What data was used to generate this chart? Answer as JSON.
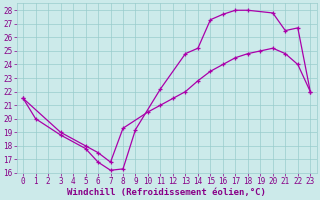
{
  "xlabel": "Windchill (Refroidissement éolien,°C)",
  "xlim": [
    -0.5,
    23.5
  ],
  "ylim": [
    16,
    28.5
  ],
  "xticks": [
    0,
    1,
    2,
    3,
    4,
    5,
    6,
    7,
    8,
    9,
    10,
    11,
    12,
    13,
    14,
    15,
    16,
    17,
    18,
    19,
    20,
    21,
    22,
    23
  ],
  "yticks": [
    16,
    17,
    18,
    19,
    20,
    21,
    22,
    23,
    24,
    25,
    26,
    27,
    28
  ],
  "bg_color": "#cceaea",
  "grid_color": "#99cccc",
  "line_color": "#aa00aa",
  "curve1_x": [
    0,
    1,
    3,
    5,
    6,
    7,
    8,
    9,
    11,
    13,
    14,
    15,
    16,
    17,
    18,
    20,
    21,
    22,
    23
  ],
  "curve1_y": [
    21.5,
    20.0,
    18.8,
    17.8,
    16.8,
    16.2,
    16.3,
    19.2,
    22.2,
    24.8,
    25.2,
    27.3,
    27.7,
    28.0,
    28.0,
    27.8,
    26.5,
    26.7,
    22.0
  ],
  "curve2_x": [
    0,
    3,
    5,
    6,
    7,
    8,
    10,
    11,
    12,
    13,
    14,
    15,
    16,
    17,
    18,
    19,
    20,
    21,
    22,
    23
  ],
  "curve2_y": [
    21.5,
    19.0,
    18.0,
    17.5,
    16.8,
    19.3,
    20.5,
    21.0,
    21.5,
    22.0,
    22.8,
    23.5,
    24.0,
    24.5,
    24.8,
    25.0,
    25.2,
    24.8,
    24.0,
    22.0
  ],
  "font_color": "#880088",
  "tick_font_size": 5.5,
  "label_font_size": 6.5
}
